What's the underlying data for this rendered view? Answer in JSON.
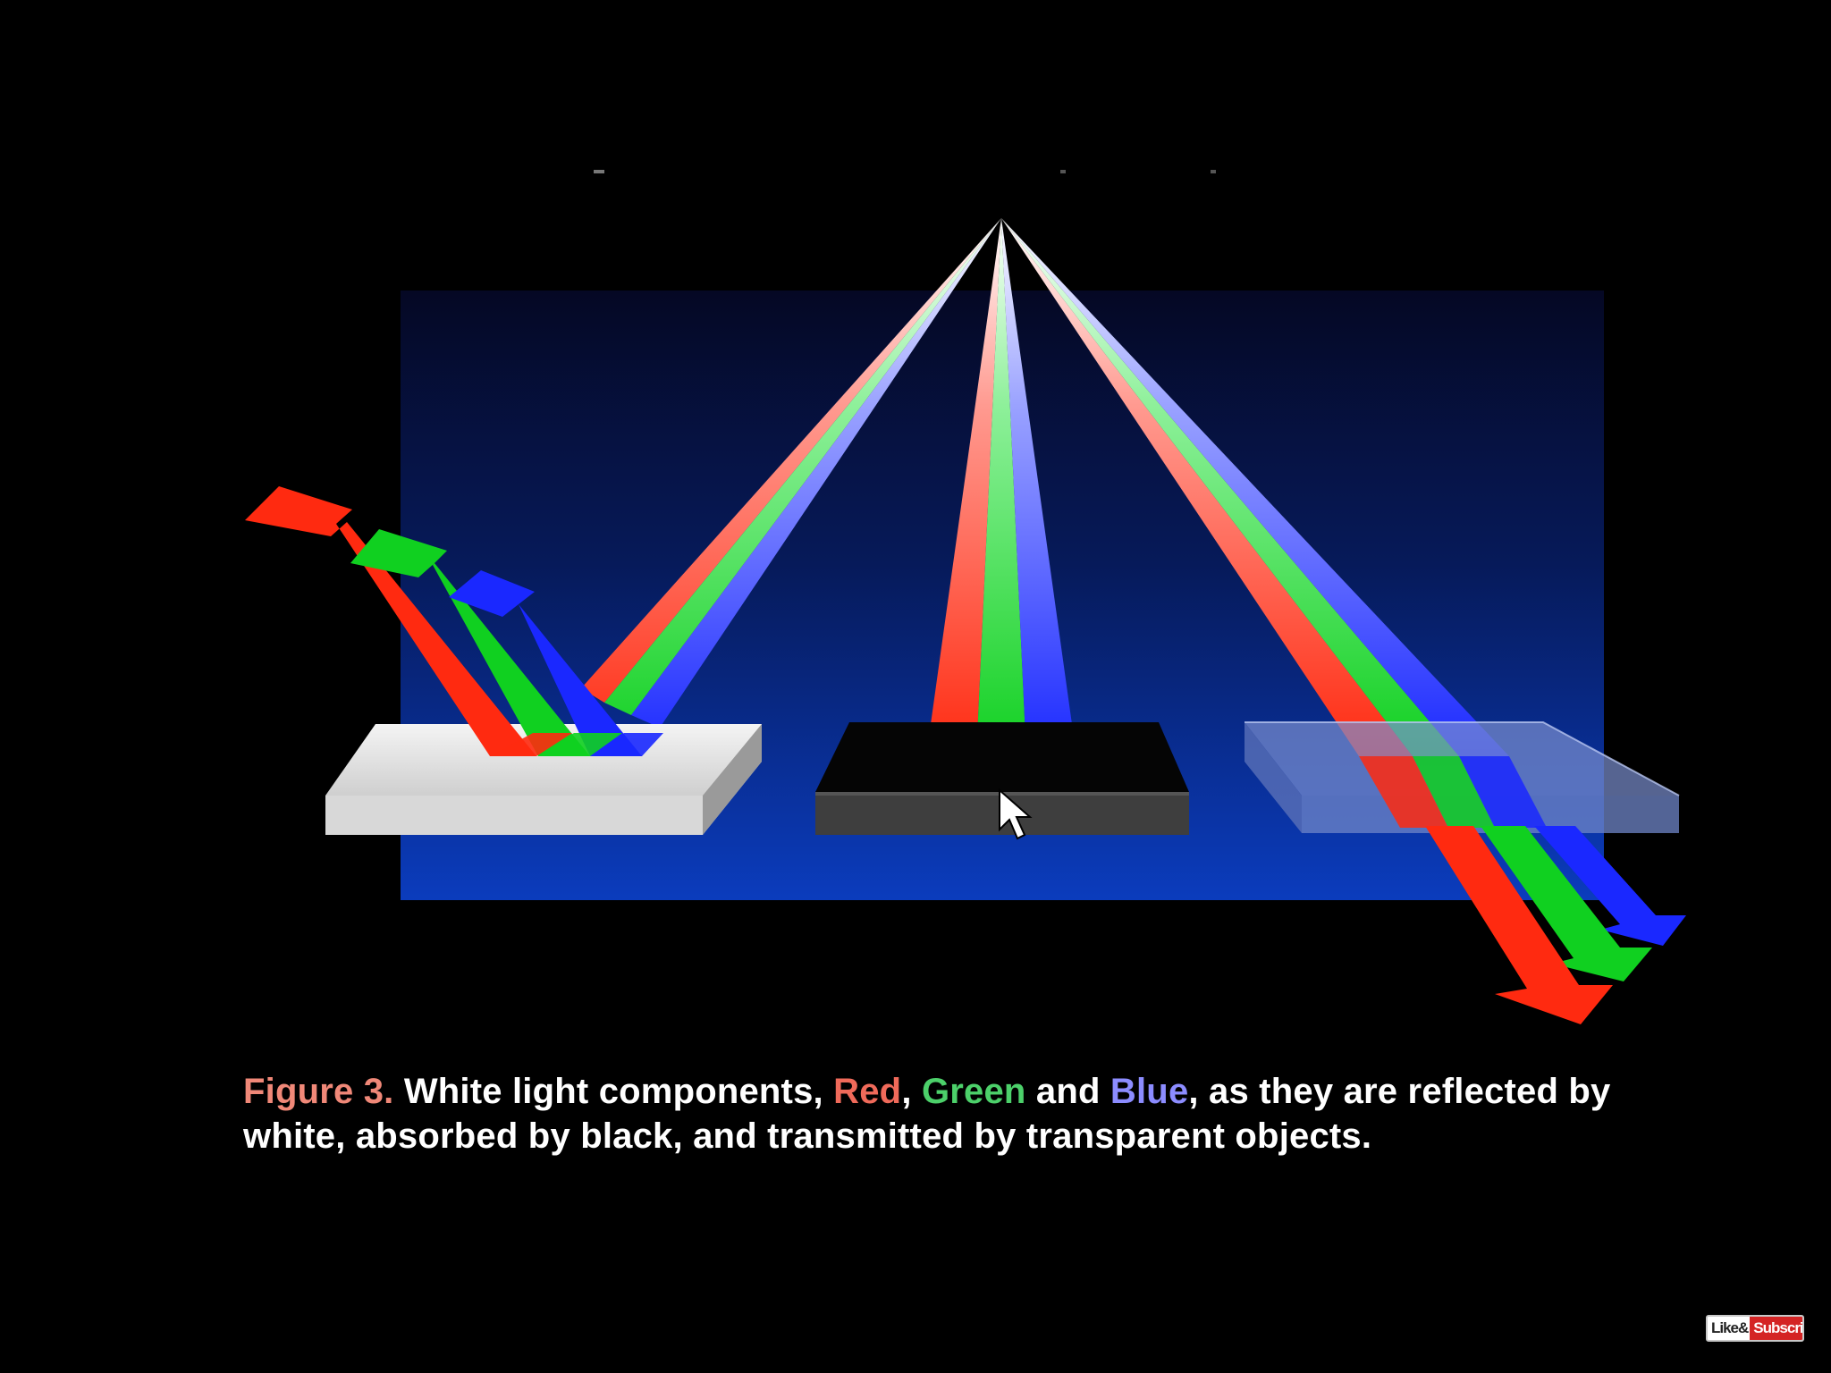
{
  "figure": {
    "caption": {
      "figure_label": "Figure 3.",
      "text_1": " White light components, ",
      "red_word": "Red",
      "sep_1": ", ",
      "green_word": "Green",
      "sep_2": " and ",
      "blue_word": "Blue",
      "text_2": ", as they are reflected by white, absorbed by black, and transmitted by transparent objects."
    },
    "colors": {
      "red": "#ff2a10",
      "green": "#10d020",
      "blue": "#1a28ff",
      "background_top": "#000000",
      "panel_top": "#060a30",
      "panel_bottom": "#0a3ab8"
    },
    "objects": [
      "white-block",
      "black-block",
      "transparent-block"
    ],
    "cursor_icon": "mouse-pointer-icon"
  },
  "badge": {
    "like_text": "Like&",
    "subscribe_text": "Subscribe"
  }
}
